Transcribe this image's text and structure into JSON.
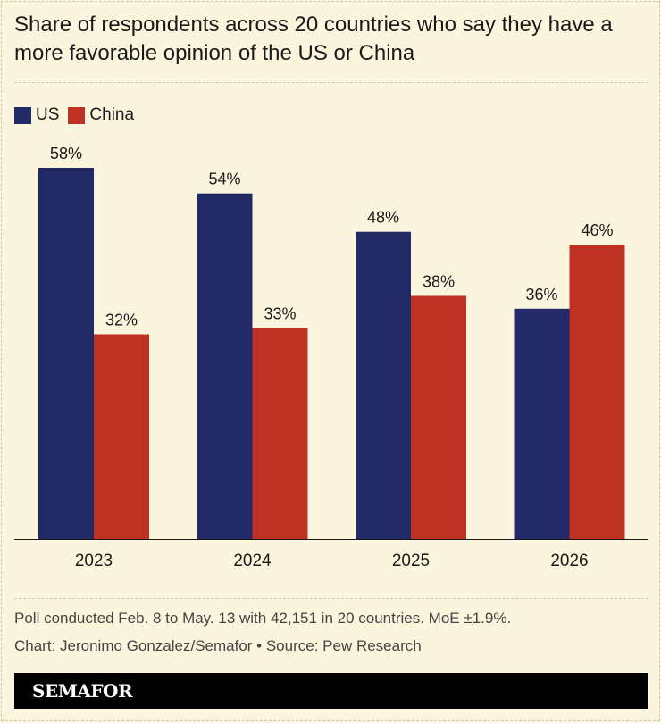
{
  "title": "Share of respondents across 20 countries who say they have a more favorable opinion of the US or China",
  "legend": [
    {
      "label": "US",
      "color": "#212a66"
    },
    {
      "label": "China",
      "color": "#bf3223"
    }
  ],
  "chart_data": {
    "type": "bar",
    "categories": [
      "2023",
      "2024",
      "2025",
      "2026"
    ],
    "series": [
      {
        "name": "US",
        "values": [
          58,
          54,
          48,
          36
        ],
        "labels": [
          "58%",
          "54%",
          "48%",
          "36%"
        ],
        "color": "#212a66"
      },
      {
        "name": "China",
        "values": [
          32,
          33,
          38,
          46
        ],
        "labels": [
          "32%",
          "33%",
          "38%",
          "46%"
        ],
        "color": "#bf3223"
      }
    ],
    "ylim": [
      0,
      58
    ],
    "grid": false,
    "legend_position": "top-left"
  },
  "footer": {
    "note": "Poll conducted Feb. 8 to May. 13 with 42,151 in 20 countries. MoE ±1.9%.",
    "credit": "Chart: Jeronimo Gonzalez/Semafor • Source: Pew Research",
    "brand": "SEMAFOR"
  }
}
